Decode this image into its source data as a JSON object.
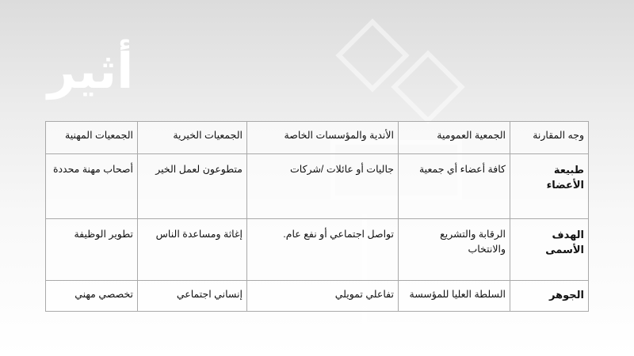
{
  "logo": {
    "text": "أثير"
  },
  "table": {
    "headers": [
      "وجه المقارنة",
      "الجمعية العمومية",
      "الأندية والمؤسسات الخاصة",
      "الجمعيات الخيرية",
      "الجمعيات المهنية"
    ],
    "rows": [
      [
        "طبيعة الأعضاء",
        "كافة أعضاء أي جمعية",
        "جاليات أو عائلات /شركات",
        "متطوعون لعمل الخير",
        "أصحاب مهنة محددة"
      ],
      [
        "الهدف الأسمى",
        "الرقابة والتشريع والانتخاب",
        "تواصل اجتماعي أو نفع عام.",
        "إغاثة ومساعدة الناس",
        "تطوير الوظيفة"
      ],
      [
        "الجوهر",
        "السلطة العليا للمؤسسة",
        "تفاعلي تمويلي",
        "إنساني اجتماعي",
        "تخصصي مهني"
      ]
    ]
  }
}
